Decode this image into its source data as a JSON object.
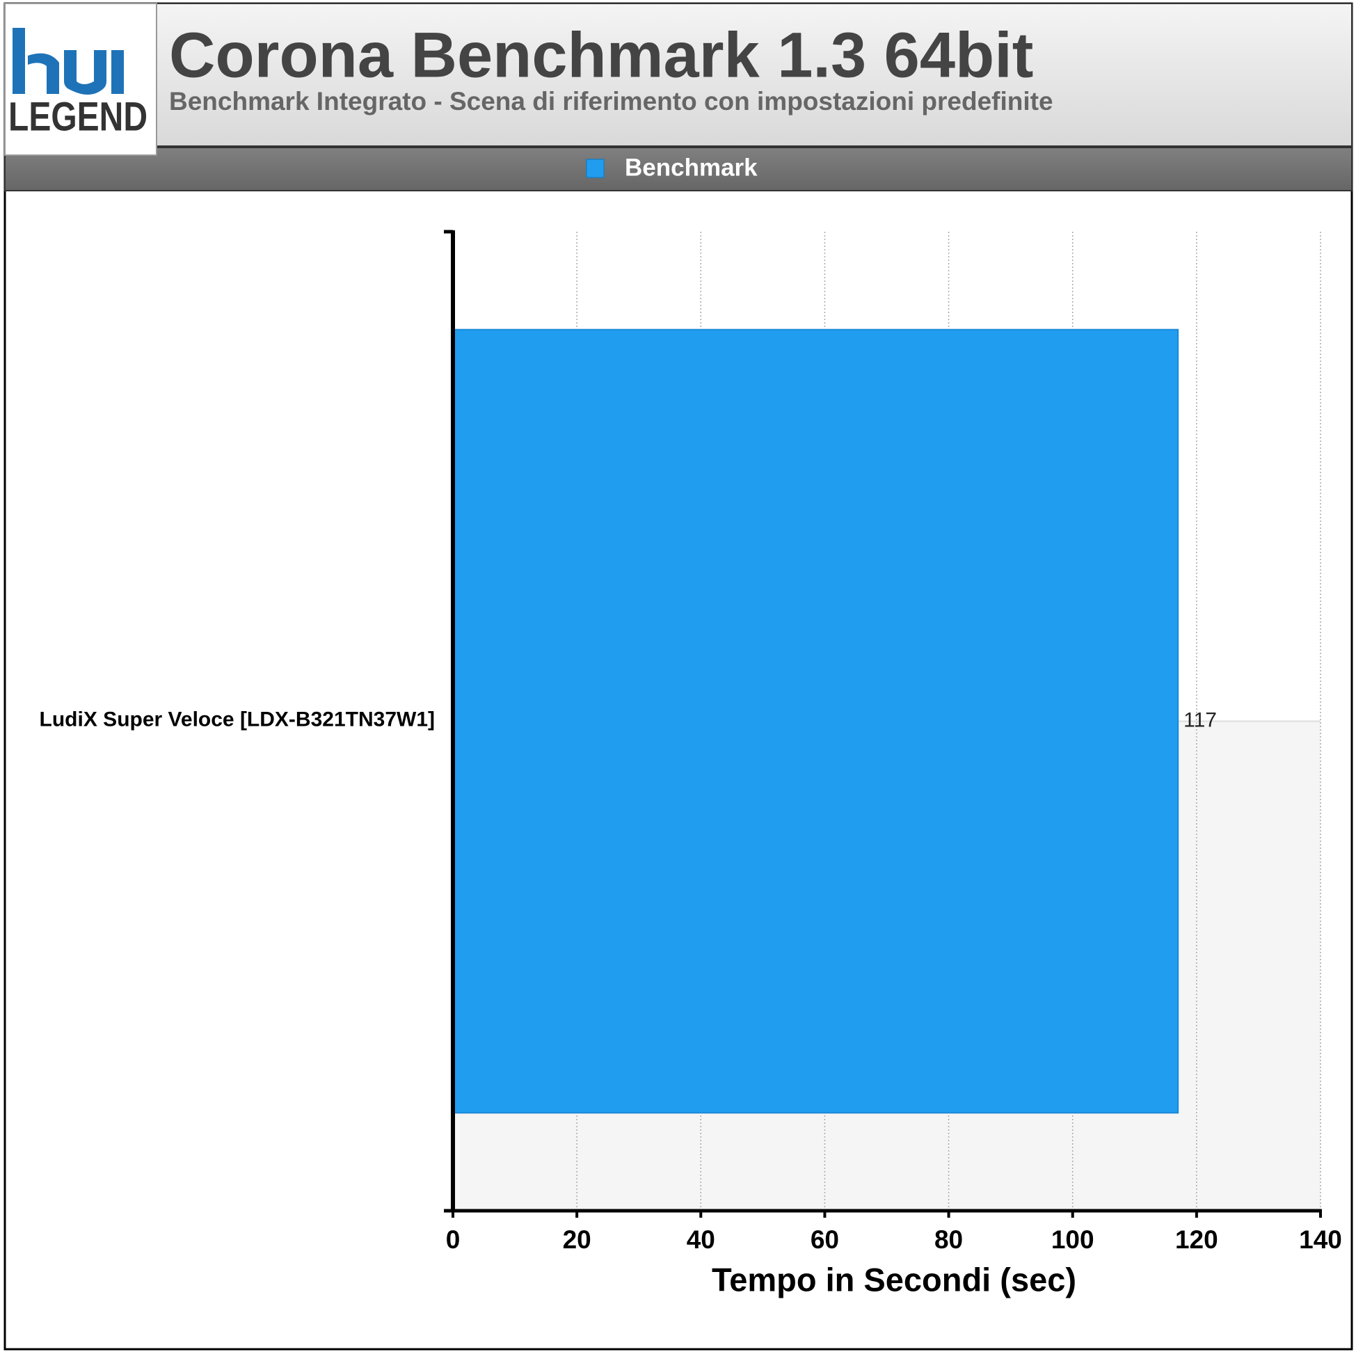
{
  "logo": "LEGEND",
  "chart_data": {
    "type": "hbar",
    "title": "Corona Benchmark 1.3 64bit",
    "subtitle": "Benchmark Integrato - Scena di riferimento con impostazioni predefinite",
    "categories": [
      "LudiX Super Veloce [LDX-B321TN37W1]"
    ],
    "series": [
      {
        "name": "Benchmark",
        "color": "#219df0",
        "values": [
          117
        ]
      }
    ],
    "xlim": [
      0,
      140
    ],
    "xticks": [
      0,
      20,
      40,
      60,
      80,
      100,
      120,
      140
    ],
    "xlabel": "Tempo in Secondi (sec)",
    "grid": true,
    "legend": "top"
  }
}
